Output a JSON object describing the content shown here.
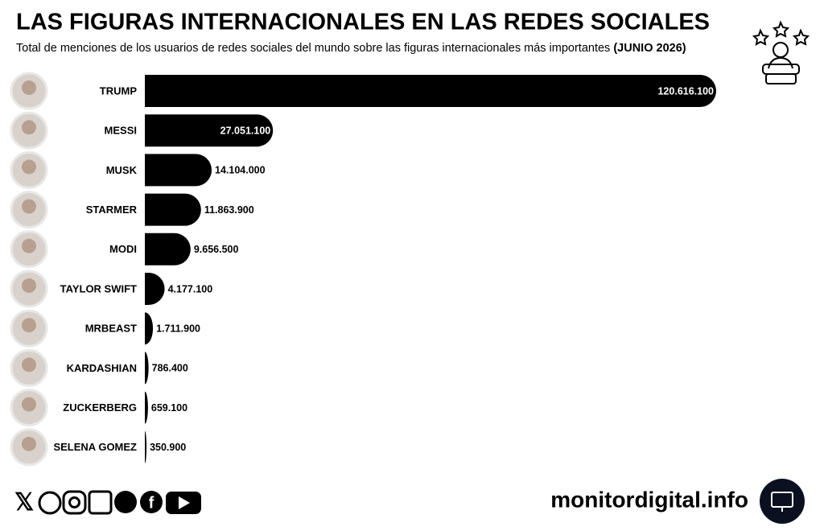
{
  "chart_data": {
    "type": "bar",
    "orientation": "horizontal",
    "title": "LAS FIGURAS INTERNACIONALES EN LAS REDES SOCIALES",
    "subtitle": "Total de menciones de los usuarios de redes sociales del mundo sobre las figuras internacionales más importantes",
    "subtitle_date": "(JUNIO 2026)",
    "categories": [
      "TRUMP",
      "MESSI",
      "MUSK",
      "STARMER",
      "MODI",
      "TAYLOR SWIFT",
      "MRBEAST",
      "KARDASHIAN",
      "ZUCKERBERG",
      "SELENA GOMEZ"
    ],
    "values": [
      120616100,
      27051100,
      14104000,
      11863900,
      9656500,
      4177100,
      1711900,
      786400,
      659100,
      350900
    ],
    "value_labels": [
      "120.616.100",
      "27.051.100",
      "14.104.000",
      "11.863.900",
      "9.656.500",
      "4.177.100",
      "1.711.900",
      "786.400",
      "659.100",
      "350.900"
    ],
    "color": "#000000",
    "footer": "monitordigital.info"
  }
}
